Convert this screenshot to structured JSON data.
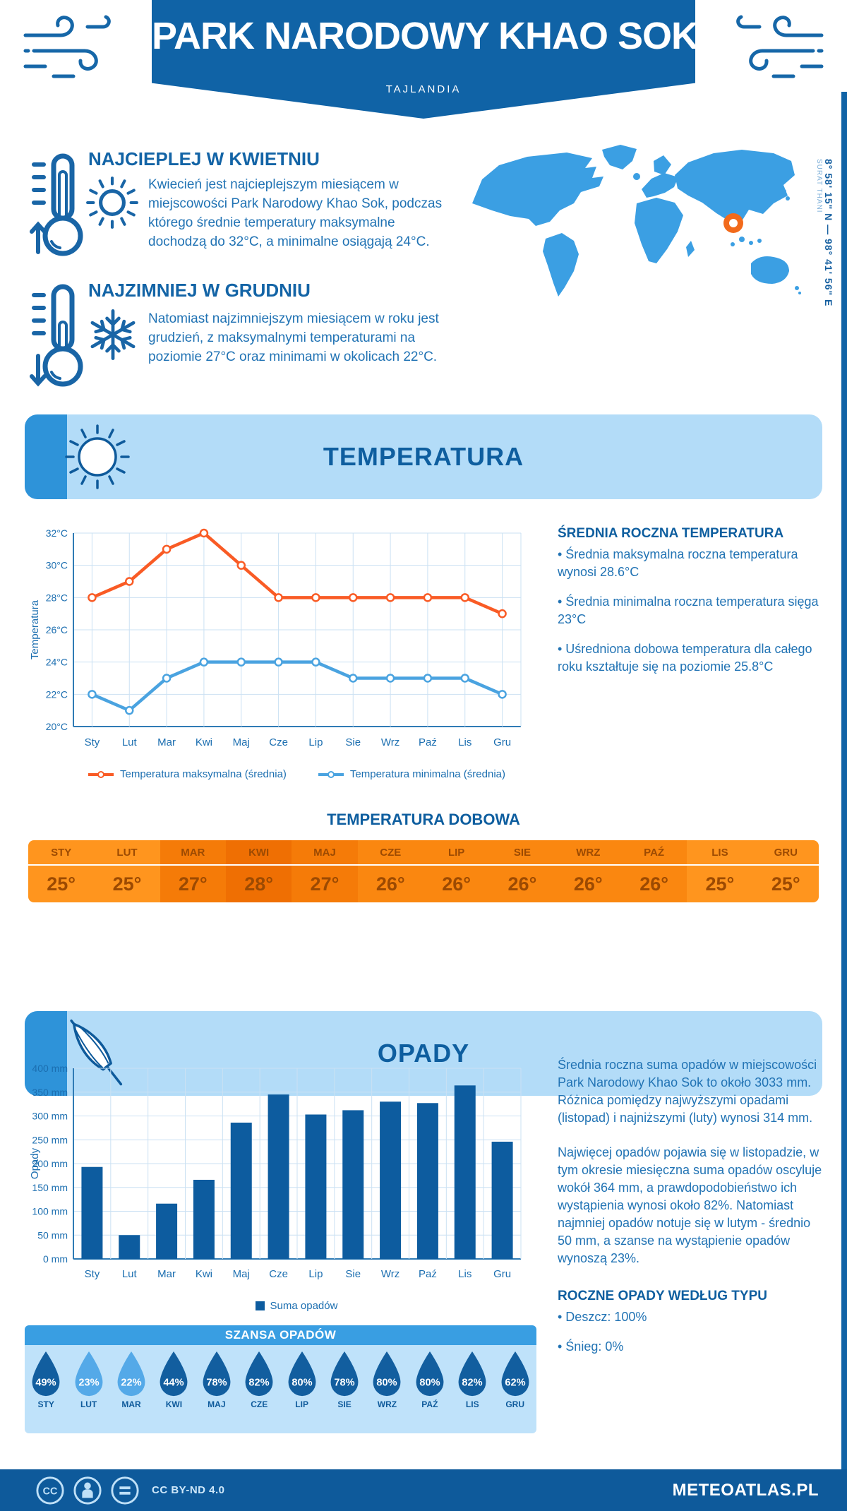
{
  "header": {
    "title": "PARK NARODOWY KHAO SOK",
    "subtitle": "TAJLANDIA"
  },
  "location": {
    "coordinates": "8° 58' 15\" N — 98° 41' 56\" E",
    "region": "SURAT THANI"
  },
  "highlights": [
    {
      "title": "NAJCIEPLEJ W KWIETNIU",
      "text": "Kwiecień jest najcieplejszym miesiącem w miejscowości Park Narodowy Khao Sok, podczas którego średnie temperatury maksymalne dochodzą do 32°C, a minimalne osiągają 24°C."
    },
    {
      "title": "NAJZIMNIEJ W GRUDNIU",
      "text": "Natomiast najzimniejszym miesiącem w roku jest grudzień, z maksymalnymi temperaturami na poziomie 27°C oraz minimami w okolicach 22°C."
    }
  ],
  "temperature_section": {
    "banner_title": "TEMPERATURA",
    "summary_title": "ŚREDNIA ROCZNA TEMPERATURA",
    "bullets": [
      "• Średnia maksymalna roczna temperatura wynosi 28.6°C",
      "• Średnia minimalna roczna temperatura sięga 23°C",
      "• Uśredniona dobowa temperatura dla całego roku kształtuje się na poziomie 25.8°C"
    ],
    "daily_title": "TEMPERATURA DOBOWA"
  },
  "daily_table": {
    "columns": [
      {
        "month": "STY",
        "value": "25°",
        "color": "#FF951E"
      },
      {
        "month": "LUT",
        "value": "25°",
        "color": "#FF951E"
      },
      {
        "month": "MAR",
        "value": "27°",
        "color": "#F57B08"
      },
      {
        "month": "KWI",
        "value": "28°",
        "color": "#EF6F03"
      },
      {
        "month": "MAJ",
        "value": "27°",
        "color": "#F57B08"
      },
      {
        "month": "CZE",
        "value": "26°",
        "color": "#FA8710"
      },
      {
        "month": "LIP",
        "value": "26°",
        "color": "#FA8710"
      },
      {
        "month": "SIE",
        "value": "26°",
        "color": "#FA8710"
      },
      {
        "month": "WRZ",
        "value": "26°",
        "color": "#FA8710"
      },
      {
        "month": "PAŹ",
        "value": "26°",
        "color": "#FA8710"
      },
      {
        "month": "LIS",
        "value": "25°",
        "color": "#FF951E"
      },
      {
        "month": "GRU",
        "value": "25°",
        "color": "#FF951E"
      }
    ]
  },
  "precipitation_section": {
    "banner_title": "OPADY",
    "paragraphs": [
      "Średnia roczna suma opadów w miejscowości Park Narodowy Khao Sok to około 3033 mm. Różnica pomiędzy najwyższymi opadami (listopad) i najniższymi (luty) wynosi 314 mm.",
      "Najwięcej opadów pojawia się w listopadzie, w tym okresie miesięczna suma opadów oscyluje wokół 364 mm, a prawdopodobieństwo ich wystąpienia wynosi około 82%. Natomiast najmniej opadów notuje się w lutym - średnio 50 mm, a szanse na wystąpienie opadów wynoszą 23%."
    ],
    "type_title": "ROCZNE OPADY WEDŁUG TYPU",
    "type_bullets": [
      "• Deszcz: 100%",
      "• Śnieg: 0%"
    ],
    "chance": {
      "title": "SZANSA OPADÓW",
      "items": [
        {
          "month": "STY",
          "value": "49%",
          "color": "#125E9F"
        },
        {
          "month": "LUT",
          "value": "23%",
          "color": "#54A9E8"
        },
        {
          "month": "MAR",
          "value": "22%",
          "color": "#54A9E8"
        },
        {
          "month": "KWI",
          "value": "44%",
          "color": "#125E9F"
        },
        {
          "month": "MAJ",
          "value": "78%",
          "color": "#125E9F"
        },
        {
          "month": "CZE",
          "value": "82%",
          "color": "#125E9F"
        },
        {
          "month": "LIP",
          "value": "80%",
          "color": "#125E9F"
        },
        {
          "month": "SIE",
          "value": "78%",
          "color": "#125E9F"
        },
        {
          "month": "WRZ",
          "value": "80%",
          "color": "#125E9F"
        },
        {
          "month": "PAŹ",
          "value": "80%",
          "color": "#125E9F"
        },
        {
          "month": "LIS",
          "value": "82%",
          "color": "#125E9F"
        },
        {
          "month": "GRU",
          "value": "62%",
          "color": "#125E9F"
        }
      ]
    }
  },
  "footer": {
    "license": "CC BY-ND 4.0",
    "site": "METEOATLAS.PL"
  },
  "chart_data": [
    {
      "type": "line",
      "title": "Temperatura",
      "ylabel": "Temperatura",
      "categories": [
        "Sty",
        "Lut",
        "Mar",
        "Kwi",
        "Maj",
        "Cze",
        "Lip",
        "Sie",
        "Wrz",
        "Paź",
        "Lis",
        "Gru"
      ],
      "series": [
        {
          "name": "Temperatura maksymalna (średnia)",
          "color": "#F95B25",
          "values": [
            28,
            29,
            31,
            32,
            30,
            28,
            28,
            28,
            28,
            28,
            28,
            27
          ]
        },
        {
          "name": "Temperatura minimalna (średnia)",
          "color": "#4AA3E0",
          "values": [
            22,
            21,
            23,
            24,
            24,
            24,
            24,
            23,
            23,
            23,
            23,
            22
          ]
        }
      ],
      "ylim": [
        20,
        32
      ],
      "ytick_step": 2,
      "ytick_suffix": "°C",
      "grid": true,
      "legend_position": "bottom"
    },
    {
      "type": "bar",
      "title": "Opady",
      "ylabel": "Opady",
      "categories": [
        "Sty",
        "Lut",
        "Mar",
        "Kwi",
        "Maj",
        "Cze",
        "Lip",
        "Sie",
        "Wrz",
        "Paź",
        "Lis",
        "Gru"
      ],
      "values": [
        193,
        50,
        116,
        166,
        286,
        345,
        303,
        312,
        330,
        327,
        364,
        246
      ],
      "bar_color": "#0D5C9F",
      "legend": "Suma opadów",
      "ylim": [
        0,
        400
      ],
      "ytick_step": 50,
      "ytick_suffix": " mm",
      "grid": true,
      "legend_position": "bottom"
    }
  ]
}
